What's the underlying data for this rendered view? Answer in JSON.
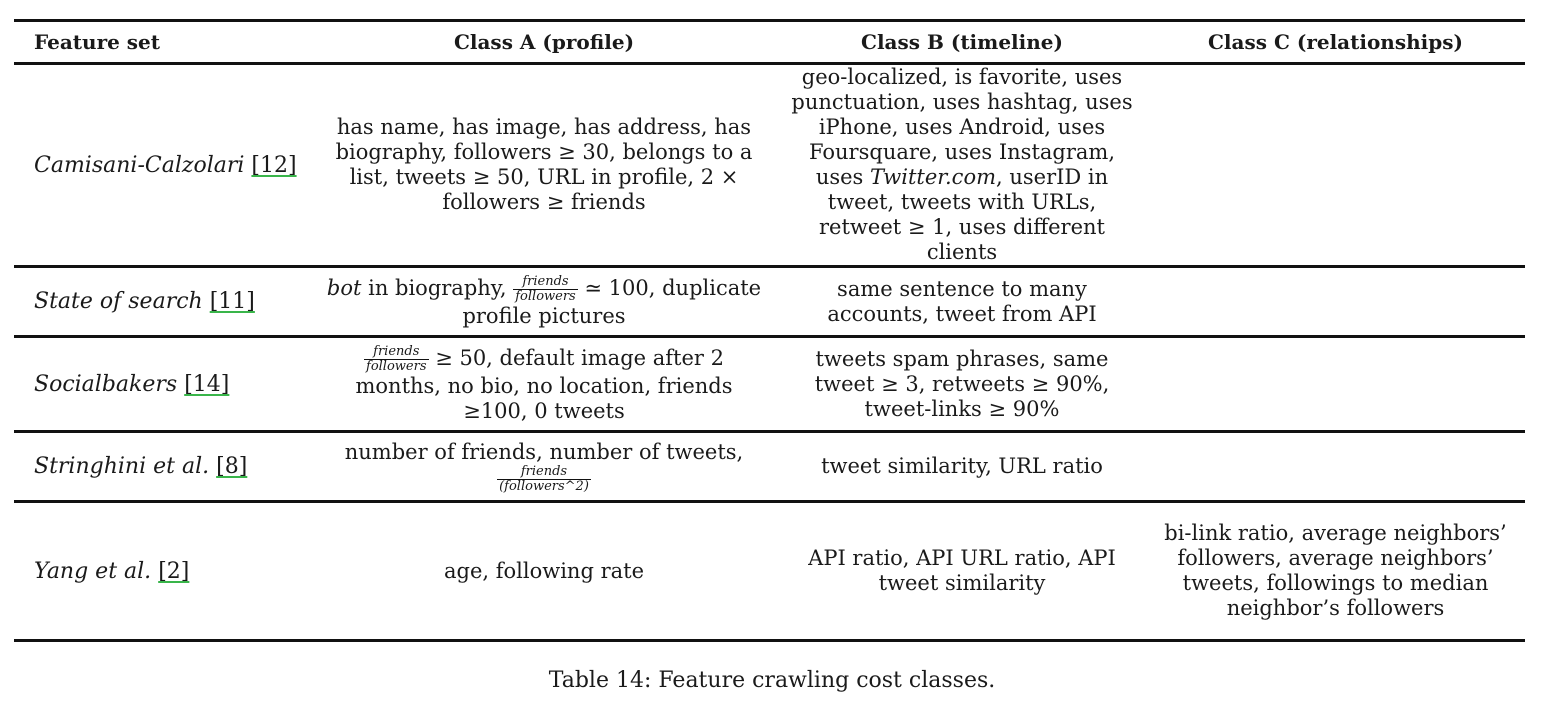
{
  "table": {
    "headers": [
      "Feature set",
      "Class A (profile)",
      "Class B (timeline)",
      "Class C (relationships)"
    ],
    "rows": [
      {
        "name": "Camisani-Calzolari",
        "ref": "[12]",
        "a": "has name, has image, has address, has biography, followers ≥ 30, belongs to a list, tweets ≥ 50, URL in profile, 2 × followers ≥ friends",
        "b_pre": "geo-localized, is favorite, uses punctuation, uses hashtag, uses iPhone, uses Android, uses Foursquare, uses Instagram, uses",
        "b_italic": "Twitter.com",
        "b_post": ", userID in tweet, tweets with URLs, retweet ≥ 1, uses different clients",
        "c": ""
      },
      {
        "name": "State of search",
        "ref": "[11]",
        "a_italic": "bot",
        "a_pre": " in biography,",
        "a_frac_num": "friends",
        "a_frac_den": "followers",
        "a_post": " ≃ 100, duplicate profile pictures",
        "b": "same sentence to many accounts, tweet from API",
        "c": ""
      },
      {
        "name": "Socialbakers",
        "ref": "[14]",
        "a_frac_num": "friends",
        "a_frac_den": "followers",
        "a_post": " ≥ 50, default image after 2 months, no bio, no location, friends ≥100, 0 tweets",
        "b": "tweets spam phrases, same tweet ≥ 3, retweets ≥ 90%, tweet-links ≥ 90%",
        "c": ""
      },
      {
        "name": "Stringhini et al.",
        "ref": "[8]",
        "a_pre": "number of friends, number of tweets,",
        "a_frac_num": "friends",
        "a_frac_den": "(followers^2)",
        "b": "tweet similarity, URL ratio",
        "c": ""
      },
      {
        "name": "Yang et al.",
        "ref": "[2]",
        "a": "age, following rate",
        "b": "API ratio, API URL ratio, API tweet similarity",
        "c": "bi-link ratio, average neighbors’ followers, average neighbors’ tweets, followings to median neighbor’s followers"
      }
    ]
  },
  "caption": "Table 14: Feature crawling cost classes."
}
